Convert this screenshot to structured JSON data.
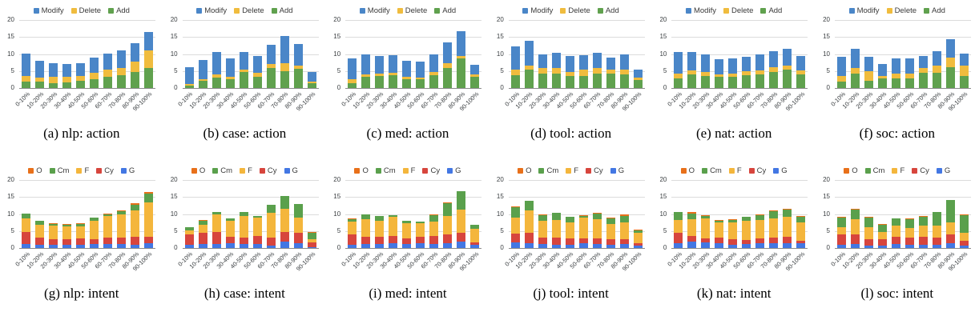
{
  "palette": {
    "Modify": "#4A86C8",
    "Delete": "#F0BC3E",
    "Add": "#60A14E",
    "O": "#E8701A",
    "Cm": "#5AA04C",
    "F": "#F4B63C",
    "Cy": "#D7453D",
    "G": "#4377E3"
  },
  "axis": {
    "y_ticks": [
      0,
      5,
      10,
      15,
      20
    ],
    "y_max": 20,
    "grid": "horizontal"
  },
  "categories": [
    "0-10%",
    "10-20%",
    "20-30%",
    "30-40%",
    "40-50%",
    "50-60%",
    "60-70%",
    "70-80%",
    "80-90%",
    "90-100%"
  ],
  "action_legend": [
    "Modify",
    "Delete",
    "Add"
  ],
  "intent_legend": [
    "O",
    "Cm",
    "F",
    "Cy",
    "G"
  ],
  "chart_data": [
    {
      "type": "bar",
      "stacked": true,
      "caption": "(a) nlp: action",
      "legend_order": [
        "Modify",
        "Delete",
        "Add"
      ],
      "series": [
        {
          "name": "Add",
          "values": [
            1.9,
            1.9,
            1.5,
            1.7,
            2.2,
            2.7,
            3.2,
            3.8,
            4.6,
            6.0
          ]
        },
        {
          "name": "Delete",
          "values": [
            1.6,
            1.1,
            1.7,
            1.5,
            1.3,
            1.8,
            2.3,
            2.2,
            3.2,
            5.0
          ]
        },
        {
          "name": "Modify",
          "values": [
            6.7,
            5.0,
            4.0,
            3.8,
            3.7,
            4.5,
            4.7,
            5.0,
            5.4,
            5.4
          ]
        }
      ]
    },
    {
      "type": "bar",
      "stacked": true,
      "caption": "(b) case: action",
      "legend_order": [
        "Modify",
        "Delete",
        "Add"
      ],
      "series": [
        {
          "name": "Add",
          "values": [
            0.7,
            2.2,
            3.0,
            2.7,
            4.7,
            3.3,
            6.0,
            5.0,
            5.7,
            1.5
          ]
        },
        {
          "name": "Delete",
          "values": [
            0.5,
            0.3,
            1.0,
            0.5,
            0.8,
            1.2,
            1.0,
            2.2,
            1.0,
            0.5
          ]
        },
        {
          "name": "Modify",
          "values": [
            5.0,
            5.7,
            6.7,
            5.6,
            5.0,
            5.0,
            5.6,
            8.0,
            6.3,
            2.7
          ]
        }
      ]
    },
    {
      "type": "bar",
      "stacked": true,
      "caption": "(c) med: action",
      "legend_order": [
        "Modify",
        "Delete",
        "Add"
      ],
      "series": [
        {
          "name": "Add",
          "values": [
            1.5,
            3.3,
            3.6,
            3.7,
            2.5,
            2.5,
            3.8,
            6.0,
            8.6,
            3.2
          ]
        },
        {
          "name": "Delete",
          "values": [
            1.0,
            0.8,
            0.7,
            0.8,
            0.8,
            0.5,
            0.8,
            1.2,
            0.8,
            0.8
          ]
        },
        {
          "name": "Modify",
          "values": [
            6.2,
            5.8,
            5.1,
            5.1,
            4.6,
            4.8,
            5.2,
            6.2,
            7.2,
            2.8
          ]
        }
      ]
    },
    {
      "type": "bar",
      "stacked": true,
      "caption": "(d) tool: action",
      "legend_order": [
        "Modify",
        "Delete",
        "Add"
      ],
      "series": [
        {
          "name": "Add",
          "values": [
            3.8,
            5.4,
            4.2,
            4.3,
            3.6,
            3.6,
            4.3,
            4.2,
            4.0,
            2.3
          ]
        },
        {
          "name": "Delete",
          "values": [
            1.5,
            1.3,
            1.6,
            1.5,
            1.2,
            1.7,
            1.5,
            1.2,
            1.5,
            0.8
          ]
        },
        {
          "name": "Modify",
          "values": [
            6.9,
            7.1,
            4.1,
            4.6,
            4.5,
            4.3,
            4.6,
            3.5,
            4.4,
            2.3
          ]
        }
      ]
    },
    {
      "type": "bar",
      "stacked": true,
      "caption": "(e) nat: action",
      "legend_order": [
        "Modify",
        "Delete",
        "Add"
      ],
      "series": [
        {
          "name": "Add",
          "values": [
            2.9,
            3.9,
            3.6,
            3.3,
            3.2,
            3.8,
            3.9,
            4.7,
            5.4,
            4.1
          ]
        },
        {
          "name": "Delete",
          "values": [
            1.4,
            1.3,
            1.2,
            0.6,
            1.0,
            1.2,
            1.3,
            1.4,
            1.1,
            1.1
          ]
        },
        {
          "name": "Modify",
          "values": [
            6.3,
            5.4,
            5.0,
            4.5,
            4.4,
            4.1,
            4.7,
            4.8,
            5.1,
            4.2
          ]
        }
      ]
    },
    {
      "type": "bar",
      "stacked": true,
      "caption": "(f) soc: action",
      "legend_order": [
        "Modify",
        "Delete",
        "Add"
      ],
      "series": [
        {
          "name": "Add",
          "values": [
            1.9,
            4.2,
            2.2,
            2.9,
            2.9,
            2.9,
            4.4,
            4.5,
            6.1,
            3.6
          ]
        },
        {
          "name": "Delete",
          "values": [
            1.6,
            1.8,
            2.8,
            0.6,
            1.3,
            1.4,
            1.4,
            2.2,
            2.9,
            2.9
          ]
        },
        {
          "name": "Modify",
          "values": [
            5.6,
            5.6,
            4.1,
            3.5,
            4.6,
            4.3,
            3.7,
            4.1,
            5.3,
            3.6
          ]
        }
      ]
    },
    {
      "type": "bar",
      "stacked": true,
      "caption": "(g) nlp: intent",
      "legend_order": [
        "O",
        "Cm",
        "F",
        "Cy",
        "G"
      ],
      "series": [
        {
          "name": "G",
          "values": [
            1.2,
            0.9,
            1.0,
            1.0,
            1.0,
            1.1,
            1.1,
            1.1,
            1.0,
            1.4
          ]
        },
        {
          "name": "Cy",
          "values": [
            3.5,
            2.1,
            1.7,
            1.6,
            1.8,
            1.5,
            2.0,
            1.9,
            2.2,
            1.8
          ]
        },
        {
          "name": "F",
          "values": [
            4.0,
            3.9,
            3.9,
            3.7,
            3.6,
            5.4,
            6.2,
            7.0,
            7.8,
            10.3
          ]
        },
        {
          "name": "Cm",
          "values": [
            1.4,
            1.0,
            0.5,
            0.6,
            0.7,
            0.9,
            0.7,
            0.8,
            1.8,
            2.5
          ]
        },
        {
          "name": "O",
          "values": [
            0.1,
            0.1,
            0.1,
            0.1,
            0.1,
            0.1,
            0.2,
            0.2,
            0.4,
            0.4
          ]
        }
      ]
    },
    {
      "type": "bar",
      "stacked": true,
      "caption": "(h) case: intent",
      "legend_order": [
        "O",
        "Cm",
        "F",
        "Cy",
        "G"
      ],
      "series": [
        {
          "name": "G",
          "values": [
            0.9,
            1.1,
            1.1,
            1.3,
            1.1,
            1.2,
            0.7,
            2.0,
            1.5,
            0.3
          ]
        },
        {
          "name": "Cy",
          "values": [
            3.1,
            3.3,
            3.5,
            2.0,
            2.0,
            2.3,
            2.4,
            2.7,
            3.0,
            1.4
          ]
        },
        {
          "name": "F",
          "values": [
            1.2,
            2.4,
            5.4,
            4.8,
            6.4,
            5.4,
            7.2,
            6.8,
            4.4,
            1.0
          ]
        },
        {
          "name": "Cm",
          "values": [
            1.0,
            1.2,
            0.5,
            0.6,
            1.0,
            0.6,
            2.3,
            3.7,
            4.1,
            1.7
          ]
        },
        {
          "name": "O",
          "values": [
            0.0,
            0.2,
            0.2,
            0.1,
            0.0,
            0.0,
            0.0,
            0.0,
            0.0,
            0.3
          ]
        }
      ]
    },
    {
      "type": "bar",
      "stacked": true,
      "caption": "(i) med: intent",
      "legend_order": [
        "O",
        "Cm",
        "F",
        "Cy",
        "G"
      ],
      "series": [
        {
          "name": "G",
          "values": [
            0.9,
            1.2,
            1.1,
            1.4,
            1.2,
            1.4,
            1.2,
            1.3,
            1.9,
            1.0
          ]
        },
        {
          "name": "Cy",
          "values": [
            3.1,
            2.2,
            2.3,
            2.1,
            1.6,
            1.8,
            2.3,
            2.6,
            2.6,
            0.6
          ]
        },
        {
          "name": "F",
          "values": [
            3.7,
            5.1,
            4.7,
            5.7,
            4.4,
            4.0,
            4.3,
            5.6,
            6.7,
            4.0
          ]
        },
        {
          "name": "Cm",
          "values": [
            0.8,
            1.4,
            1.3,
            0.4,
            0.7,
            0.5,
            1.9,
            3.8,
            5.4,
            1.2
          ]
        },
        {
          "name": "O",
          "values": [
            0.2,
            0.0,
            0.0,
            0.0,
            0.0,
            0.1,
            0.1,
            0.1,
            0.0,
            0.0
          ]
        }
      ]
    },
    {
      "type": "bar",
      "stacked": true,
      "caption": "(j) tool: intent",
      "legend_order": [
        "O",
        "Cm",
        "F",
        "Cy",
        "G"
      ],
      "series": [
        {
          "name": "G",
          "values": [
            1.7,
            1.4,
            1.1,
            1.0,
            1.0,
            1.3,
            1.1,
            1.0,
            1.1,
            0.8
          ]
        },
        {
          "name": "Cy",
          "values": [
            2.5,
            3.1,
            1.9,
            2.1,
            1.9,
            1.6,
            1.8,
            1.6,
            1.4,
            0.5
          ]
        },
        {
          "name": "F",
          "values": [
            4.7,
            6.5,
            5.0,
            5.1,
            4.7,
            6.0,
            5.6,
            4.5,
            5.1,
            3.1
          ]
        },
        {
          "name": "Cm",
          "values": [
            3.2,
            2.8,
            1.6,
            2.1,
            1.6,
            0.6,
            1.6,
            1.7,
            1.9,
            0.8
          ]
        },
        {
          "name": "O",
          "values": [
            0.1,
            0.0,
            0.3,
            0.1,
            0.1,
            0.2,
            0.3,
            0.1,
            0.3,
            0.2
          ]
        }
      ]
    },
    {
      "type": "bar",
      "stacked": true,
      "caption": "(k) nat: intent",
      "legend_order": [
        "O",
        "Cm",
        "F",
        "Cy",
        "G"
      ],
      "series": [
        {
          "name": "G",
          "values": [
            1.3,
            1.8,
            1.7,
            1.5,
            1.0,
            1.2,
            1.3,
            1.3,
            1.3,
            1.3
          ]
        },
        {
          "name": "Cy",
          "values": [
            3.1,
            1.8,
            1.2,
            1.6,
            1.6,
            1.2,
            1.5,
            1.7,
            1.9,
            0.9
          ]
        },
        {
          "name": "F",
          "values": [
            3.9,
            4.8,
            5.8,
            4.5,
            4.9,
            5.5,
            5.4,
            5.8,
            6.0,
            5.4
          ]
        },
        {
          "name": "Cm",
          "values": [
            2.3,
            1.8,
            0.8,
            0.5,
            0.7,
            1.2,
            1.4,
            2.0,
            2.1,
            1.6
          ]
        },
        {
          "name": "O",
          "values": [
            0.0,
            0.4,
            0.2,
            0.2,
            0.3,
            0.0,
            0.3,
            0.2,
            0.3,
            0.2
          ]
        }
      ]
    },
    {
      "type": "bar",
      "stacked": true,
      "caption": "(l) soc: intent",
      "legend_order": [
        "O",
        "Cm",
        "F",
        "Cy",
        "G"
      ],
      "series": [
        {
          "name": "G",
          "values": [
            0.9,
            1.1,
            0.7,
            0.7,
            1.2,
            1.0,
            0.9,
            1.0,
            1.4,
            0.6
          ]
        },
        {
          "name": "Cy",
          "values": [
            3.1,
            2.9,
            1.9,
            1.8,
            2.2,
            2.1,
            2.3,
            2.0,
            2.5,
            1.6
          ]
        },
        {
          "name": "F",
          "values": [
            2.2,
            4.4,
            3.5,
            2.3,
            3.1,
            2.7,
            3.3,
            3.5,
            3.7,
            2.3
          ]
        },
        {
          "name": "Cm",
          "values": [
            2.8,
            2.9,
            2.8,
            2.1,
            2.1,
            2.7,
            2.8,
            4.0,
            6.6,
            5.2
          ]
        },
        {
          "name": "O",
          "values": [
            0.1,
            0.3,
            0.2,
            0.1,
            0.2,
            0.1,
            0.2,
            0.2,
            0.0,
            0.3
          ]
        }
      ]
    }
  ]
}
